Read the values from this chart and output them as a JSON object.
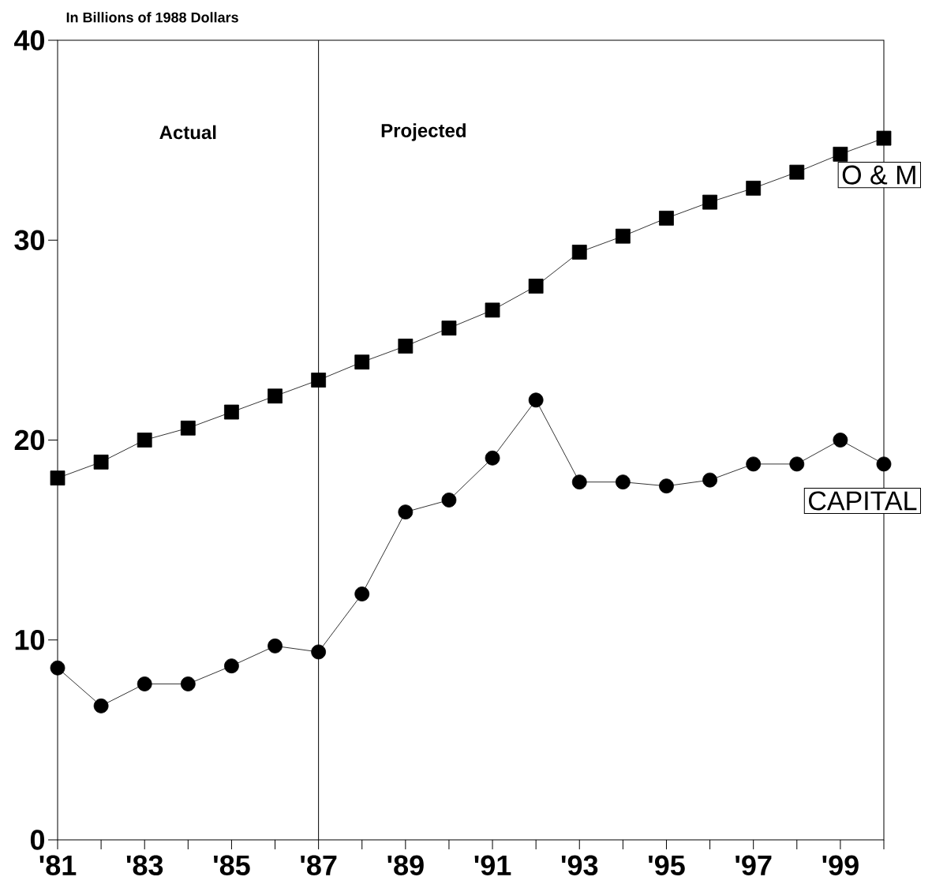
{
  "chart_data": {
    "type": "line",
    "ylabel": "In Billions of 1988 Dollars",
    "x": [
      1981,
      1982,
      1983,
      1984,
      1985,
      1986,
      1987,
      1988,
      1989,
      1990,
      1991,
      1992,
      1993,
      1994,
      1995,
      1996,
      1997,
      1998,
      1999,
      2000
    ],
    "series": [
      {
        "name": "O & M",
        "color": "#000000",
        "marker": "square",
        "values": [
          18.1,
          18.9,
          20.0,
          20.6,
          21.4,
          22.2,
          23.0,
          23.9,
          24.7,
          25.6,
          26.5,
          27.7,
          29.4,
          30.2,
          31.1,
          31.9,
          32.6,
          33.4,
          34.3,
          35.1
        ]
      },
      {
        "name": "CAPITAL",
        "color": "#000000",
        "marker": "circle",
        "values": [
          8.6,
          6.7,
          7.8,
          7.8,
          8.7,
          9.7,
          9.4,
          12.3,
          16.4,
          17.0,
          19.1,
          22.0,
          17.9,
          17.9,
          17.7,
          18.0,
          18.8,
          18.8,
          20.0,
          18.8
        ]
      }
    ],
    "xlim": [
      1981,
      2000
    ],
    "ylim": [
      0,
      40
    ],
    "yticks": [
      0,
      10,
      20,
      30,
      40
    ],
    "xticks": [
      {
        "value": 1981,
        "label": "'81"
      },
      {
        "value": 1982,
        "label": null
      },
      {
        "value": 1983,
        "label": "'83"
      },
      {
        "value": 1984,
        "label": null
      },
      {
        "value": 1985,
        "label": "'85"
      },
      {
        "value": 1986,
        "label": null
      },
      {
        "value": 1987,
        "label": "'87"
      },
      {
        "value": 1988,
        "label": null
      },
      {
        "value": 1989,
        "label": "'89"
      },
      {
        "value": 1990,
        "label": null
      },
      {
        "value": 1991,
        "label": "'91"
      },
      {
        "value": 1992,
        "label": null
      },
      {
        "value": 1993,
        "label": "'93"
      },
      {
        "value": 1994,
        "label": null
      },
      {
        "value": 1995,
        "label": "'95"
      },
      {
        "value": 1996,
        "label": null
      },
      {
        "value": 1997,
        "label": "'97"
      },
      {
        "value": 1998,
        "label": null
      },
      {
        "value": 1999,
        "label": "'99"
      },
      {
        "value": 2000,
        "label": null
      }
    ],
    "ref_lines": [
      {
        "axis": "x",
        "value": 1987,
        "color": "#000000"
      }
    ],
    "annotations": [
      "Actual",
      "Projected"
    ],
    "grid": false,
    "legend": false,
    "line_style": "solid"
  }
}
